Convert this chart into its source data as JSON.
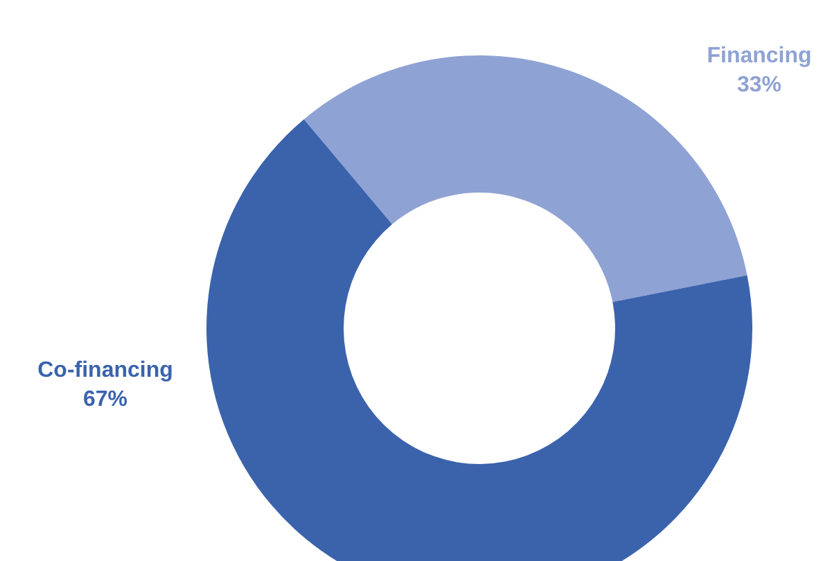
{
  "chart_data": {
    "type": "donut",
    "categories": [
      "Financing",
      "Co-financing"
    ],
    "values": [
      33,
      67
    ],
    "colors": [
      "#8fa2d4",
      "#3b63ac"
    ],
    "value_labels": [
      "33%",
      "67%"
    ]
  }
}
